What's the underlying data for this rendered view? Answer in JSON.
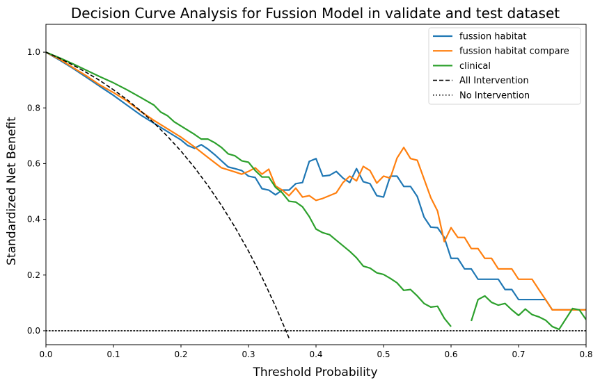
{
  "chart_data": {
    "type": "line",
    "title": "Decision Curve Analysis for Fussion Model in validate and test dataset",
    "xlabel": "Threshold Probability",
    "ylabel": "Standardized Net Benefit",
    "xlim": [
      0.0,
      0.8
    ],
    "ylim": [
      -0.05,
      1.1
    ],
    "xticks": [
      "0.0",
      "0.1",
      "0.2",
      "0.3",
      "0.4",
      "0.5",
      "0.6",
      "0.7",
      "0.8"
    ],
    "yticks": [
      "0.0",
      "0.2",
      "0.4",
      "0.6",
      "0.8",
      "1.0"
    ],
    "grid": false,
    "legend_position": "top-right",
    "series": [
      {
        "name": "fussion habitat",
        "color": "#1f77b4",
        "style": "solid",
        "points": [
          [
            0.0,
            1.0
          ],
          [
            0.02,
            0.972
          ],
          [
            0.04,
            0.942
          ],
          [
            0.06,
            0.91
          ],
          [
            0.08,
            0.877
          ],
          [
            0.1,
            0.845
          ],
          [
            0.12,
            0.81
          ],
          [
            0.14,
            0.775
          ],
          [
            0.16,
            0.745
          ],
          [
            0.18,
            0.715
          ],
          [
            0.2,
            0.685
          ],
          [
            0.21,
            0.665
          ],
          [
            0.22,
            0.655
          ],
          [
            0.23,
            0.668
          ],
          [
            0.24,
            0.652
          ],
          [
            0.25,
            0.632
          ],
          [
            0.26,
            0.61
          ],
          [
            0.27,
            0.588
          ],
          [
            0.28,
            0.582
          ],
          [
            0.29,
            0.575
          ],
          [
            0.3,
            0.555
          ],
          [
            0.31,
            0.55
          ],
          [
            0.32,
            0.51
          ],
          [
            0.33,
            0.505
          ],
          [
            0.34,
            0.488
          ],
          [
            0.35,
            0.505
          ],
          [
            0.36,
            0.505
          ],
          [
            0.37,
            0.528
          ],
          [
            0.38,
            0.532
          ],
          [
            0.39,
            0.608
          ],
          [
            0.4,
            0.618
          ],
          [
            0.41,
            0.555
          ],
          [
            0.42,
            0.558
          ],
          [
            0.43,
            0.572
          ],
          [
            0.44,
            0.548
          ],
          [
            0.45,
            0.532
          ],
          [
            0.46,
            0.582
          ],
          [
            0.47,
            0.535
          ],
          [
            0.48,
            0.528
          ],
          [
            0.49,
            0.485
          ],
          [
            0.5,
            0.48
          ],
          [
            0.51,
            0.555
          ],
          [
            0.52,
            0.555
          ],
          [
            0.53,
            0.518
          ],
          [
            0.54,
            0.518
          ],
          [
            0.55,
            0.482
          ],
          [
            0.56,
            0.408
          ],
          [
            0.57,
            0.372
          ],
          [
            0.58,
            0.37
          ],
          [
            0.59,
            0.335
          ],
          [
            0.6,
            0.26
          ],
          [
            0.61,
            0.26
          ],
          [
            0.62,
            0.222
          ],
          [
            0.63,
            0.222
          ],
          [
            0.64,
            0.185
          ],
          [
            0.65,
            0.185
          ],
          [
            0.66,
            0.185
          ],
          [
            0.67,
            0.185
          ],
          [
            0.68,
            0.148
          ],
          [
            0.69,
            0.148
          ],
          [
            0.7,
            0.112
          ],
          [
            0.71,
            0.112
          ],
          [
            0.72,
            0.112
          ],
          [
            0.73,
            0.112
          ],
          [
            0.74,
            0.112
          ],
          [
            0.75,
            0.075
          ],
          [
            0.76,
            0.075
          ],
          [
            0.77,
            0.075
          ],
          [
            0.78,
            0.075
          ],
          [
            0.79,
            0.075
          ],
          [
            0.8,
            0.075
          ]
        ]
      },
      {
        "name": "fussion habitat compare",
        "color": "#ff7f0e",
        "style": "solid",
        "points": [
          [
            0.0,
            1.0
          ],
          [
            0.02,
            0.975
          ],
          [
            0.04,
            0.945
          ],
          [
            0.06,
            0.915
          ],
          [
            0.08,
            0.882
          ],
          [
            0.1,
            0.855
          ],
          [
            0.12,
            0.825
          ],
          [
            0.14,
            0.788
          ],
          [
            0.16,
            0.755
          ],
          [
            0.18,
            0.725
          ],
          [
            0.2,
            0.695
          ],
          [
            0.22,
            0.66
          ],
          [
            0.24,
            0.622
          ],
          [
            0.26,
            0.585
          ],
          [
            0.28,
            0.57
          ],
          [
            0.29,
            0.562
          ],
          [
            0.3,
            0.572
          ],
          [
            0.31,
            0.585
          ],
          [
            0.32,
            0.562
          ],
          [
            0.33,
            0.58
          ],
          [
            0.34,
            0.52
          ],
          [
            0.35,
            0.505
          ],
          [
            0.36,
            0.485
          ],
          [
            0.37,
            0.512
          ],
          [
            0.38,
            0.48
          ],
          [
            0.39,
            0.485
          ],
          [
            0.4,
            0.468
          ],
          [
            0.41,
            0.475
          ],
          [
            0.42,
            0.485
          ],
          [
            0.43,
            0.495
          ],
          [
            0.44,
            0.532
          ],
          [
            0.45,
            0.555
          ],
          [
            0.46,
            0.538
          ],
          [
            0.47,
            0.59
          ],
          [
            0.48,
            0.575
          ],
          [
            0.49,
            0.53
          ],
          [
            0.5,
            0.555
          ],
          [
            0.51,
            0.548
          ],
          [
            0.52,
            0.62
          ],
          [
            0.53,
            0.658
          ],
          [
            0.54,
            0.618
          ],
          [
            0.55,
            0.612
          ],
          [
            0.56,
            0.545
          ],
          [
            0.57,
            0.478
          ],
          [
            0.58,
            0.43
          ],
          [
            0.59,
            0.32
          ],
          [
            0.6,
            0.37
          ],
          [
            0.61,
            0.335
          ],
          [
            0.62,
            0.335
          ],
          [
            0.63,
            0.295
          ],
          [
            0.64,
            0.295
          ],
          [
            0.65,
            0.26
          ],
          [
            0.66,
            0.26
          ],
          [
            0.67,
            0.222
          ],
          [
            0.68,
            0.222
          ],
          [
            0.69,
            0.222
          ],
          [
            0.7,
            0.185
          ],
          [
            0.71,
            0.185
          ],
          [
            0.72,
            0.185
          ],
          [
            0.73,
            0.148
          ],
          [
            0.74,
            0.112
          ],
          [
            0.75,
            0.075
          ],
          [
            0.76,
            0.075
          ],
          [
            0.77,
            0.075
          ],
          [
            0.78,
            0.075
          ],
          [
            0.79,
            0.075
          ],
          [
            0.8,
            0.075
          ]
        ]
      },
      {
        "name": "clinical",
        "color": "#2ca02c",
        "style": "solid",
        "points": [
          [
            0.0,
            1.0
          ],
          [
            0.02,
            0.98
          ],
          [
            0.04,
            0.958
          ],
          [
            0.06,
            0.935
          ],
          [
            0.08,
            0.912
          ],
          [
            0.1,
            0.89
          ],
          [
            0.12,
            0.865
          ],
          [
            0.14,
            0.838
          ],
          [
            0.16,
            0.81
          ],
          [
            0.17,
            0.785
          ],
          [
            0.18,
            0.772
          ],
          [
            0.19,
            0.75
          ],
          [
            0.2,
            0.735
          ],
          [
            0.21,
            0.72
          ],
          [
            0.22,
            0.705
          ],
          [
            0.23,
            0.688
          ],
          [
            0.24,
            0.688
          ],
          [
            0.25,
            0.675
          ],
          [
            0.26,
            0.658
          ],
          [
            0.27,
            0.635
          ],
          [
            0.28,
            0.628
          ],
          [
            0.29,
            0.61
          ],
          [
            0.3,
            0.605
          ],
          [
            0.31,
            0.575
          ],
          [
            0.32,
            0.552
          ],
          [
            0.33,
            0.552
          ],
          [
            0.34,
            0.515
          ],
          [
            0.35,
            0.495
          ],
          [
            0.36,
            0.465
          ],
          [
            0.37,
            0.462
          ],
          [
            0.38,
            0.445
          ],
          [
            0.39,
            0.41
          ],
          [
            0.4,
            0.365
          ],
          [
            0.41,
            0.352
          ],
          [
            0.42,
            0.345
          ],
          [
            0.43,
            0.325
          ],
          [
            0.44,
            0.305
          ],
          [
            0.45,
            0.285
          ],
          [
            0.46,
            0.262
          ],
          [
            0.47,
            0.232
          ],
          [
            0.48,
            0.225
          ],
          [
            0.49,
            0.208
          ],
          [
            0.5,
            0.202
          ],
          [
            0.51,
            0.188
          ],
          [
            0.52,
            0.172
          ],
          [
            0.53,
            0.145
          ],
          [
            0.54,
            0.148
          ],
          [
            0.55,
            0.125
          ],
          [
            0.56,
            0.098
          ],
          [
            0.57,
            0.085
          ],
          [
            0.58,
            0.088
          ],
          [
            0.59,
            0.045
          ],
          [
            0.6,
            0.015
          ],
          null,
          [
            0.63,
            0.035
          ],
          [
            0.64,
            0.112
          ],
          [
            0.65,
            0.125
          ],
          [
            0.66,
            0.102
          ],
          [
            0.67,
            0.092
          ],
          [
            0.68,
            0.098
          ],
          [
            0.69,
            0.075
          ],
          [
            0.7,
            0.055
          ],
          [
            0.71,
            0.078
          ],
          [
            0.72,
            0.058
          ],
          [
            0.73,
            0.05
          ],
          [
            0.74,
            0.038
          ],
          [
            0.75,
            0.015
          ],
          [
            0.76,
            0.005
          ],
          [
            0.78,
            0.08
          ],
          [
            0.79,
            0.075
          ],
          [
            0.8,
            0.04
          ]
        ]
      },
      {
        "name": "All Intervention",
        "color": "#000000",
        "style": "dashed",
        "points": [
          [
            0.0,
            1.0
          ],
          [
            0.02,
            0.978
          ],
          [
            0.04,
            0.954
          ],
          [
            0.06,
            0.927
          ],
          [
            0.08,
            0.898
          ],
          [
            0.1,
            0.865
          ],
          [
            0.12,
            0.83
          ],
          [
            0.14,
            0.79
          ],
          [
            0.16,
            0.746
          ],
          [
            0.18,
            0.698
          ],
          [
            0.2,
            0.645
          ],
          [
            0.22,
            0.586
          ],
          [
            0.24,
            0.521
          ],
          [
            0.26,
            0.45
          ],
          [
            0.28,
            0.372
          ],
          [
            0.3,
            0.286
          ],
          [
            0.32,
            0.192
          ],
          [
            0.34,
            0.088
          ],
          [
            0.36,
            -0.026
          ]
        ]
      },
      {
        "name": "No Intervention",
        "color": "#000000",
        "style": "dotted",
        "points": [
          [
            0.0,
            0.0
          ],
          [
            0.8,
            0.0
          ]
        ]
      }
    ]
  }
}
